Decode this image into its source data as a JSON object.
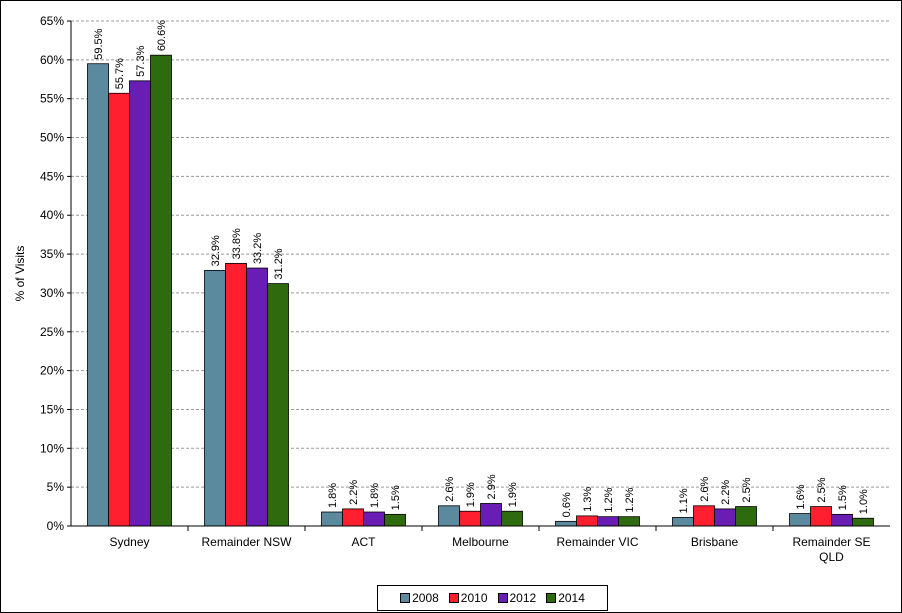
{
  "chart_data": {
    "type": "bar",
    "title": "",
    "xlabel": "",
    "ylabel": "% of Visits",
    "ylim": [
      0,
      65
    ],
    "yticks": [
      "0%",
      "5%",
      "10%",
      "15%",
      "20%",
      "25%",
      "30%",
      "35%",
      "40%",
      "45%",
      "50%",
      "55%",
      "60%",
      "65%"
    ],
    "grid": true,
    "legend_position": "bottom",
    "categories": [
      [
        "Sydney"
      ],
      [
        "Remainder NSW"
      ],
      [
        "ACT"
      ],
      [
        "Melbourne"
      ],
      [
        "Remainder VIC"
      ],
      [
        "Brisbane"
      ],
      [
        "Remainder SE",
        "QLD"
      ]
    ],
    "series": [
      {
        "name": "2008",
        "color": "#5B8A9E",
        "values": [
          59.5,
          32.9,
          1.8,
          2.6,
          0.6,
          1.1,
          1.6
        ],
        "labels": [
          "59.5%",
          "32.9%",
          "1.8%",
          "2.6%",
          "0.6%",
          "1.1%",
          "1.6%"
        ]
      },
      {
        "name": "2010",
        "color": "#FF1F2E",
        "values": [
          55.7,
          33.8,
          2.2,
          1.9,
          1.3,
          2.6,
          2.5
        ],
        "labels": [
          "55.7%",
          "33.8%",
          "2.2%",
          "1.9%",
          "1.3%",
          "2.6%",
          "2.5%"
        ]
      },
      {
        "name": "2012",
        "color": "#6A1DB5",
        "values": [
          57.3,
          33.2,
          1.8,
          2.9,
          1.2,
          2.2,
          1.5
        ],
        "labels": [
          "57.3%",
          "33.2%",
          "1.8%",
          "2.9%",
          "1.2%",
          "2.2%",
          "1.5%"
        ]
      },
      {
        "name": "2014",
        "color": "#2E6A0E",
        "values": [
          60.6,
          31.2,
          1.5,
          1.9,
          1.2,
          2.5,
          1.0
        ],
        "labels": [
          "60.6%",
          "31.2%",
          "1.5%",
          "1.9%",
          "1.2%",
          "2.5%",
          "1.0%"
        ]
      }
    ]
  }
}
